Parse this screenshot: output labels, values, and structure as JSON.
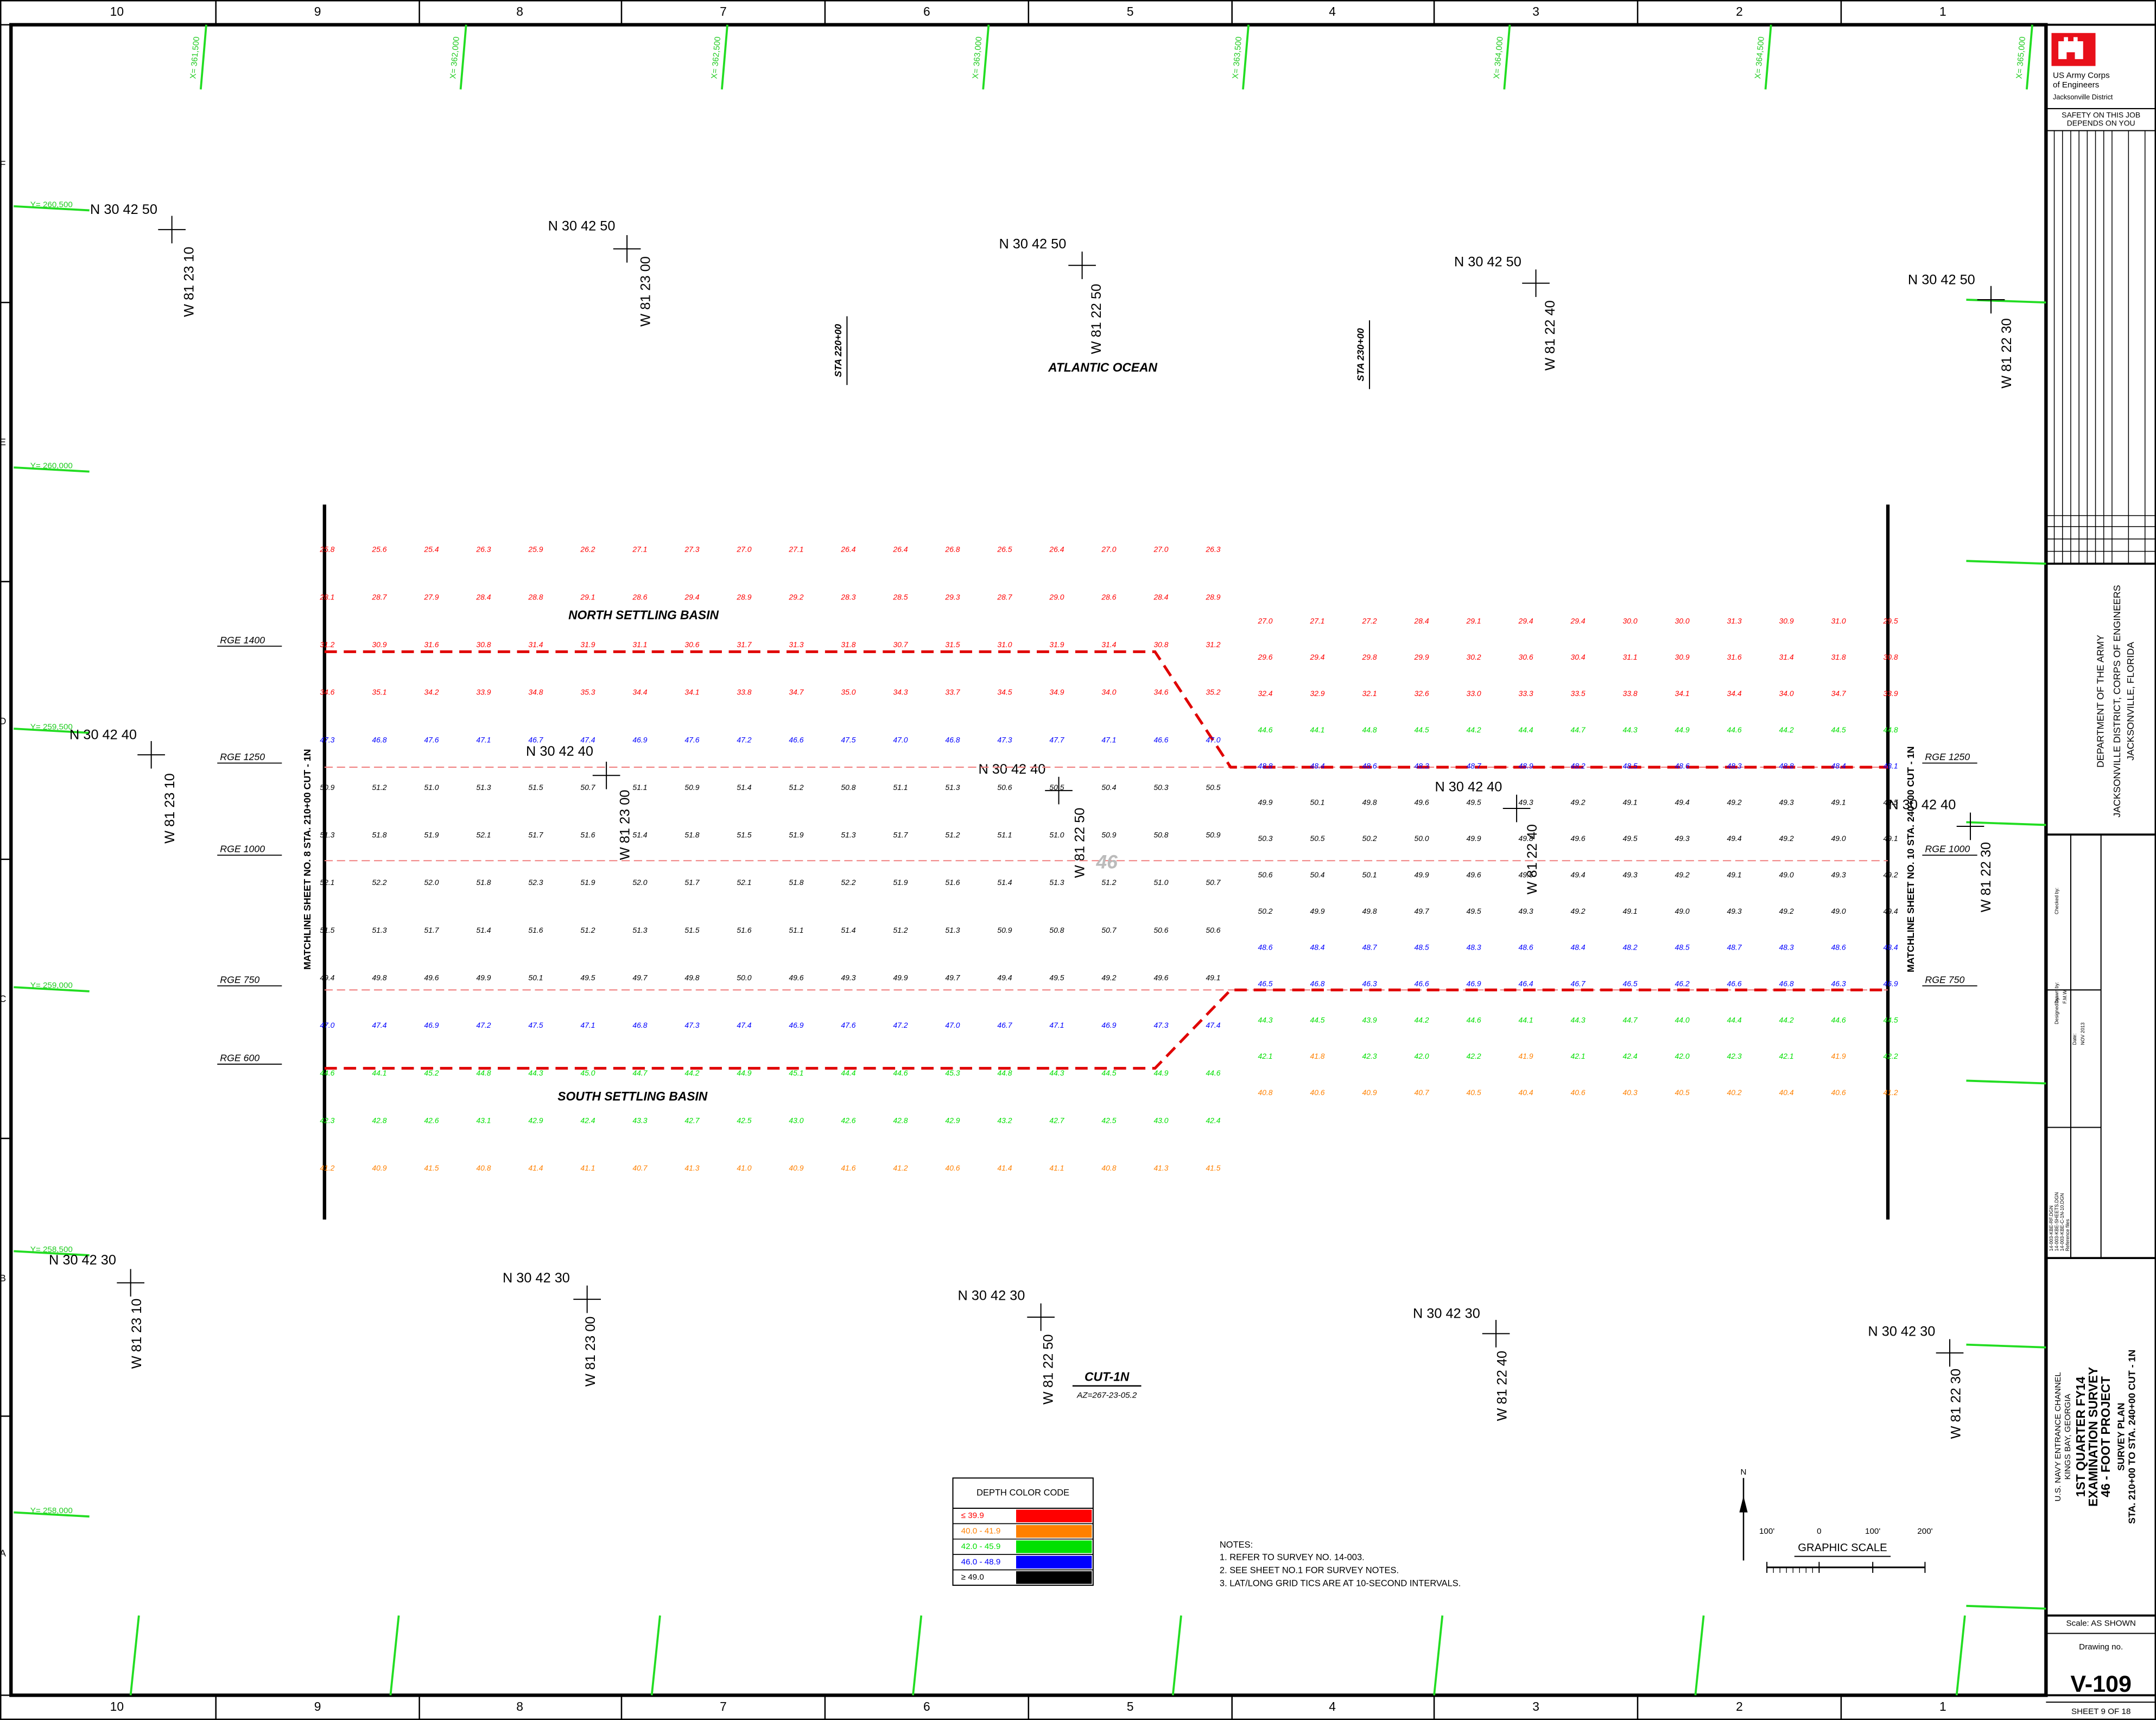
{
  "border": {
    "columns": [
      "10",
      "9",
      "8",
      "7",
      "6",
      "5",
      "4",
      "3",
      "2",
      "1"
    ],
    "rows": [
      "F",
      "E",
      "D",
      "C",
      "B",
      "A"
    ]
  },
  "grid_x": [
    "X= 361,500",
    "X= 362,000",
    "X= 362,500",
    "X= 363,000",
    "X= 363,500",
    "X= 364,000",
    "X= 364,500",
    "X= 365,000"
  ],
  "grid_y": [
    "Y= 260,500",
    "Y= 260,000",
    "Y= 259,500",
    "Y= 259,000",
    "Y= 258,500",
    "Y= 258,000"
  ],
  "latlong": [
    {
      "n": "N 30 42 50",
      "w": "W 81 23 10"
    },
    {
      "n": "N 30 42 50",
      "w": "W 81 23 00"
    },
    {
      "n": "N 30 42 50",
      "w": "W 81 22 50"
    },
    {
      "n": "N 30 42 50",
      "w": "W 81 22 40"
    },
    {
      "n": "N 30 42 50",
      "w": "W 81 22 30"
    },
    {
      "n": "N 30 42 40",
      "w": "W 81 23 10"
    },
    {
      "n": "N 30 42 40",
      "w": "W 81 23 00"
    },
    {
      "n": "N 30 42 40",
      "w": "W 81 22 50"
    },
    {
      "n": "N 30 42 40",
      "w": "W 81 22 40"
    },
    {
      "n": "N 30 42 40",
      "w": "W 81 22 30"
    },
    {
      "n": "N 30 42 30",
      "w": "W 81 23 10"
    },
    {
      "n": "N 30 42 30",
      "w": "W 81 23 00"
    },
    {
      "n": "N 30 42 30",
      "w": "W 81 22 50"
    },
    {
      "n": "N 30 42 30",
      "w": "W 81 22 40"
    },
    {
      "n": "N 30 42 30",
      "w": "W 81 22 30"
    }
  ],
  "labels": {
    "ocean": "ATLANTIC OCEAN",
    "north_basin": "NORTH SETTLING BASIN",
    "south_basin": "SOUTH SETTLING BASIN",
    "sta_220": "STA 220+00",
    "sta_230": "STA 230+00",
    "cut": "CUT-1N",
    "azimuth": "AZ=267-23-05.2",
    "depth_mark": "46",
    "matchline_left": "MATCHLINE SHEET NO. 8 STA. 210+00 CUT - 1N",
    "matchline_right": "MATCHLINE SHEET NO. 10 STA. 240+00 CUT - 1N",
    "rge_left": [
      "RGE 1400",
      "RGE 1250",
      "RGE 1000",
      "RGE 750",
      "RGE 600"
    ],
    "rge_right": [
      "RGE 1250",
      "RGE 1000",
      "RGE 750"
    ]
  },
  "soundings": [
    [
      "25.8",
      "28.1",
      "31.2",
      "34.6",
      "47.3",
      "50.9",
      "51.3",
      "52.1",
      "51.5",
      "49.4",
      "47.0",
      "44.6",
      "42.3",
      "41.2"
    ],
    [
      "25.6",
      "28.7",
      "30.9",
      "35.1",
      "46.8",
      "51.2",
      "51.8",
      "52.2",
      "51.3",
      "49.8",
      "47.4",
      "44.1",
      "42.8",
      "40.9"
    ],
    [
      "25.4",
      "27.9",
      "31.6",
      "34.2",
      "47.6",
      "51.0",
      "51.9",
      "52.0",
      "51.7",
      "49.6",
      "46.9",
      "45.2",
      "42.6",
      "41.5"
    ],
    [
      "26.3",
      "28.4",
      "30.8",
      "33.9",
      "47.1",
      "51.3",
      "52.1",
      "51.8",
      "51.4",
      "49.9",
      "47.2",
      "44.8",
      "43.1",
      "40.8"
    ],
    [
      "25.9",
      "28.8",
      "31.4",
      "34.8",
      "46.7",
      "51.5",
      "51.7",
      "52.3",
      "51.6",
      "50.1",
      "47.5",
      "44.3",
      "42.9",
      "41.4"
    ],
    [
      "26.2",
      "29.1",
      "31.9",
      "35.3",
      "47.4",
      "50.7",
      "51.6",
      "51.9",
      "51.2",
      "49.5",
      "47.1",
      "45.0",
      "42.4",
      "41.1"
    ],
    [
      "27.1",
      "28.6",
      "31.1",
      "34.4",
      "46.9",
      "51.1",
      "51.4",
      "52.0",
      "51.3",
      "49.7",
      "46.8",
      "44.7",
      "43.3",
      "40.7"
    ],
    [
      "27.3",
      "29.4",
      "30.6",
      "34.1",
      "47.6",
      "50.9",
      "51.8",
      "51.7",
      "51.5",
      "49.8",
      "47.3",
      "44.2",
      "42.7",
      "41.3"
    ],
    [
      "27.0",
      "28.9",
      "31.7",
      "33.8",
      "47.2",
      "51.4",
      "51.5",
      "52.1",
      "51.6",
      "50.0",
      "47.4",
      "44.9",
      "42.5",
      "41.0"
    ],
    [
      "27.1",
      "29.2",
      "31.3",
      "34.7",
      "46.6",
      "51.2",
      "51.9",
      "51.8",
      "51.1",
      "49.6",
      "46.9",
      "45.1",
      "43.0",
      "40.9"
    ],
    [
      "26.4",
      "28.3",
      "31.8",
      "35.0",
      "47.5",
      "50.8",
      "51.3",
      "52.2",
      "51.4",
      "49.3",
      "47.6",
      "44.4",
      "42.6",
      "41.6"
    ],
    [
      "26.4",
      "28.5",
      "30.7",
      "34.3",
      "47.0",
      "51.1",
      "51.7",
      "51.9",
      "51.2",
      "49.9",
      "47.2",
      "44.6",
      "42.8",
      "41.2"
    ],
    [
      "26.8",
      "29.3",
      "31.5",
      "33.7",
      "46.8",
      "51.3",
      "51.2",
      "51.6",
      "51.3",
      "49.7",
      "47.0",
      "45.3",
      "42.9",
      "40.6"
    ],
    [
      "26.5",
      "28.7",
      "31.0",
      "34.5",
      "47.3",
      "50.6",
      "51.1",
      "51.4",
      "50.9",
      "49.4",
      "46.7",
      "44.8",
      "43.2",
      "41.4"
    ],
    [
      "26.4",
      "29.0",
      "31.9",
      "34.9",
      "47.7",
      "50.5",
      "51.0",
      "51.3",
      "50.8",
      "49.5",
      "47.1",
      "44.3",
      "42.7",
      "41.1"
    ],
    [
      "27.0",
      "28.6",
      "31.4",
      "34.0",
      "47.1",
      "50.4",
      "50.9",
      "51.2",
      "50.7",
      "49.2",
      "46.9",
      "44.5",
      "42.5",
      "40.8"
    ],
    [
      "27.0",
      "28.4",
      "30.8",
      "34.6",
      "46.6",
      "50.3",
      "50.8",
      "51.0",
      "50.6",
      "49.6",
      "47.3",
      "44.9",
      "43.0",
      "41.3"
    ],
    [
      "26.3",
      "28.9",
      "31.2",
      "35.2",
      "47.0",
      "50.5",
      "50.9",
      "50.7",
      "50.6",
      "49.1",
      "47.4",
      "44.6",
      "42.4",
      "41.5"
    ],
    [
      "27.0",
      "29.6",
      "32.4",
      "44.6",
      "48.8",
      "49.9",
      "50.3",
      "50.6",
      "50.2",
      "48.6",
      "46.5",
      "44.3",
      "42.1",
      "40.8"
    ],
    [
      "27.1",
      "29.4",
      "32.9",
      "44.1",
      "48.4",
      "50.1",
      "50.5",
      "50.4",
      "49.9",
      "48.4",
      "46.8",
      "44.5",
      "41.8",
      "40.6"
    ],
    [
      "27.2",
      "29.8",
      "32.1",
      "44.8",
      "48.6",
      "49.8",
      "50.2",
      "50.1",
      "49.8",
      "48.7",
      "46.3",
      "43.9",
      "42.3",
      "40.9"
    ],
    [
      "28.4",
      "29.9",
      "32.6",
      "44.5",
      "48.3",
      "49.6",
      "50.0",
      "49.9",
      "49.7",
      "48.5",
      "46.6",
      "44.2",
      "42.0",
      "40.7"
    ],
    [
      "29.1",
      "30.2",
      "33.0",
      "44.2",
      "48.7",
      "49.5",
      "49.9",
      "49.6",
      "49.5",
      "48.3",
      "46.9",
      "44.6",
      "42.2",
      "40.5"
    ],
    [
      "29.4",
      "30.6",
      "33.3",
      "44.4",
      "48.9",
      "49.3",
      "49.8",
      "49.5",
      "49.3",
      "48.6",
      "46.4",
      "44.1",
      "41.9",
      "40.4"
    ],
    [
      "29.4",
      "30.4",
      "33.5",
      "44.7",
      "48.2",
      "49.2",
      "49.6",
      "49.4",
      "49.2",
      "48.4",
      "46.7",
      "44.3",
      "42.1",
      "40.6"
    ],
    [
      "30.0",
      "31.1",
      "33.8",
      "44.3",
      "48.5",
      "49.1",
      "49.5",
      "49.3",
      "49.1",
      "48.2",
      "46.5",
      "44.7",
      "42.4",
      "40.3"
    ],
    [
      "30.0",
      "30.9",
      "34.1",
      "44.9",
      "48.6",
      "49.4",
      "49.3",
      "49.2",
      "49.0",
      "48.5",
      "46.2",
      "44.0",
      "42.0",
      "40.5"
    ],
    [
      "31.3",
      "31.6",
      "34.4",
      "44.6",
      "48.3",
      "49.2",
      "49.4",
      "49.1",
      "49.3",
      "48.7",
      "46.6",
      "44.4",
      "42.3",
      "40.2"
    ],
    [
      "30.9",
      "31.4",
      "34.0",
      "44.2",
      "48.8",
      "49.3",
      "49.2",
      "49.0",
      "49.2",
      "48.3",
      "46.8",
      "44.2",
      "42.1",
      "40.4"
    ],
    [
      "31.0",
      "31.8",
      "34.7",
      "44.5",
      "48.4",
      "49.1",
      "49.0",
      "49.3",
      "49.0",
      "48.6",
      "46.3",
      "44.6",
      "41.9",
      "40.6"
    ],
    [
      "29.5",
      "30.8",
      "33.9",
      "44.8",
      "48.1",
      "49.5",
      "49.1",
      "49.2",
      "49.4",
      "48.4",
      "46.9",
      "44.5",
      "42.2",
      "41.2"
    ]
  ],
  "legend": {
    "title": "DEPTH COLOR CODE",
    "rows": [
      {
        "label": "≤ 39.9",
        "color": "#ff0000"
      },
      {
        "label": "40.0 - 41.9",
        "color": "#ff8000"
      },
      {
        "label": "42.0 - 45.9",
        "color": "#00e000"
      },
      {
        "label": "46.0 - 48.9",
        "color": "#0000ff"
      },
      {
        "label": "≥ 49.0",
        "color": "#000000"
      }
    ]
  },
  "notes": {
    "title": "NOTES:",
    "items": [
      "1. REFER TO SURVEY NO. 14-003.",
      "2. SEE SHEET NO.1 FOR SURVEY NOTES.",
      "3. LAT/LONG GRID TICS ARE AT 10-SECOND INTERVALS."
    ]
  },
  "scale": {
    "title": "GRAPHIC SCALE",
    "ticks": [
      "100'",
      "0",
      "100'",
      "200'"
    ],
    "north": "N"
  },
  "title_block": {
    "agency": [
      "US Army Corps",
      "of Engineers"
    ],
    "district": "Jacksonville District",
    "safety": [
      "SAFETY ON THIS JOB",
      "DEPENDS ON YOU"
    ],
    "department": [
      "DEPARTMENT OF THE ARMY",
      "JACKSONVILLE DISTRICT, CORPS OF ENGINEERS",
      "JACKSONVILLE, FLORIDA"
    ],
    "people": [
      "Designed by:",
      "Drawn by:",
      "F.M.W.",
      "Date:",
      "NOV 2013",
      "Checked by:"
    ],
    "files": [
      "14-003-KBE-RF.DGN",
      "14-003-KBE-SHEETS.DGN",
      "14-003-KBE-C-1N-10.DGN",
      "Reference files"
    ],
    "project": [
      "U.S. NAVY ENTRANCE CHANNEL",
      "KINGS BAY, GEORGIA"
    ],
    "title": [
      "1ST QUARTER FY14",
      "EXAMINATION SURVEY",
      "46 - FOOT PROJECT",
      "SURVEY PLAN",
      "STA. 210+00 TO STA. 240+00 CUT - 1N"
    ],
    "scale": "Scale:  AS SHOWN",
    "drawing_label": "Drawing no.",
    "drawing": "V-109",
    "sheet": "SHEET    9    OF    18"
  }
}
